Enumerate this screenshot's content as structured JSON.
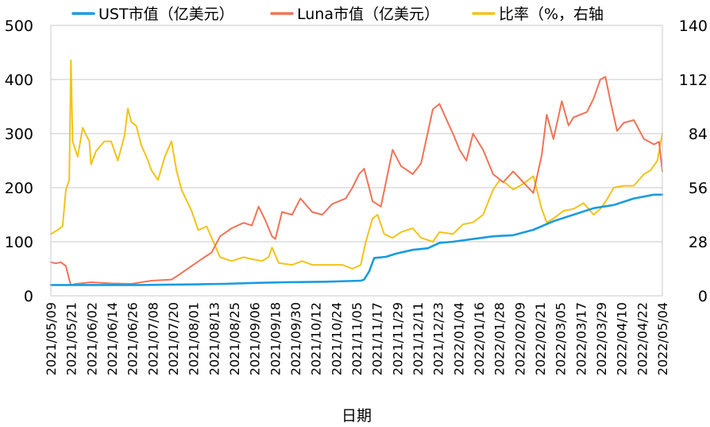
{
  "chart_data": {
    "type": "line",
    "xlabel": "日期",
    "legend_position": "top",
    "grid": true,
    "y_left": {
      "range": [
        0,
        500
      ],
      "ticks": [
        0,
        100,
        200,
        300,
        400,
        500
      ]
    },
    "y_right": {
      "range": [
        0,
        140
      ],
      "ticks": [
        0,
        28,
        56,
        84,
        112,
        140
      ]
    },
    "x_range": [
      "2021-05-09",
      "2022-05-09"
    ],
    "x_ticks": [
      "2021/05/09",
      "2021/05/21",
      "2021/06/02",
      "2021/06/14",
      "2021/06/26",
      "2021/07/08",
      "2021/07/20",
      "2021/08/01",
      "2021/08/13",
      "2021/08/25",
      "2021/09/06",
      "2021/09/18",
      "2021/09/30",
      "2021/10/12",
      "2021/10/24",
      "2021/11/05",
      "2021/11/17",
      "2021/11/29",
      "2021/12/11",
      "2021/12/23",
      "2022/01/04",
      "2022/01/16",
      "2022/01/28",
      "2022/02/09",
      "2022/02/21",
      "2022/03/05",
      "2022/03/17",
      "2022/03/29",
      "2022/04/10",
      "2022/04/22",
      "2022/05/04"
    ],
    "series": [
      {
        "name": "UST市值（亿美元）",
        "color": "#1a9be0",
        "axis": "left",
        "points": [
          [
            "2021-05-09",
            20
          ],
          [
            "2021-06-02",
            20
          ],
          [
            "2021-07-01",
            20
          ],
          [
            "2021-08-01",
            21
          ],
          [
            "2021-08-20",
            22
          ],
          [
            "2021-09-10",
            24
          ],
          [
            "2021-09-25",
            25
          ],
          [
            "2021-10-20",
            26
          ],
          [
            "2021-11-10",
            28
          ],
          [
            "2021-11-12",
            30
          ],
          [
            "2021-11-15",
            45
          ],
          [
            "2021-11-18",
            70
          ],
          [
            "2021-11-25",
            72
          ],
          [
            "2021-12-01",
            78
          ],
          [
            "2021-12-11",
            85
          ],
          [
            "2021-12-20",
            88
          ],
          [
            "2021-12-27",
            98
          ],
          [
            "2022-01-04",
            100
          ],
          [
            "2022-01-16",
            105
          ],
          [
            "2022-01-28",
            110
          ],
          [
            "2022-02-09",
            112
          ],
          [
            "2022-02-21",
            122
          ],
          [
            "2022-03-05",
            138
          ],
          [
            "2022-03-17",
            150
          ],
          [
            "2022-03-29",
            162
          ],
          [
            "2022-04-10",
            168
          ],
          [
            "2022-04-22",
            180
          ],
          [
            "2022-05-04",
            187
          ],
          [
            "2022-05-09",
            187
          ]
        ]
      },
      {
        "name": "Luna市值（亿美元）",
        "color": "#f07357",
        "axis": "left",
        "points": [
          [
            "2021-05-09",
            62
          ],
          [
            "2021-05-12",
            60
          ],
          [
            "2021-05-15",
            62
          ],
          [
            "2021-05-18",
            55
          ],
          [
            "2021-05-20",
            30
          ],
          [
            "2021-05-21",
            20
          ],
          [
            "2021-05-24",
            22
          ],
          [
            "2021-06-02",
            25
          ],
          [
            "2021-06-14",
            23
          ],
          [
            "2021-06-26",
            22
          ],
          [
            "2021-07-08",
            28
          ],
          [
            "2021-07-20",
            30
          ],
          [
            "2021-07-25",
            40
          ],
          [
            "2021-08-01",
            55
          ],
          [
            "2021-08-08",
            70
          ],
          [
            "2021-08-13",
            80
          ],
          [
            "2021-08-18",
            110
          ],
          [
            "2021-08-25",
            125
          ],
          [
            "2021-09-01",
            135
          ],
          [
            "2021-09-06",
            130
          ],
          [
            "2021-09-10",
            165
          ],
          [
            "2021-09-14",
            140
          ],
          [
            "2021-09-18",
            110
          ],
          [
            "2021-09-20",
            105
          ],
          [
            "2021-09-24",
            155
          ],
          [
            "2021-09-30",
            150
          ],
          [
            "2021-10-05",
            180
          ],
          [
            "2021-10-12",
            155
          ],
          [
            "2021-10-18",
            150
          ],
          [
            "2021-10-24",
            170
          ],
          [
            "2021-11-01",
            180
          ],
          [
            "2021-11-05",
            200
          ],
          [
            "2021-11-09",
            225
          ],
          [
            "2021-11-12",
            235
          ],
          [
            "2021-11-15",
            200
          ],
          [
            "2021-11-17",
            175
          ],
          [
            "2021-11-22",
            165
          ],
          [
            "2021-11-29",
            270
          ],
          [
            "2021-12-04",
            240
          ],
          [
            "2021-12-11",
            225
          ],
          [
            "2021-12-16",
            245
          ],
          [
            "2021-12-23",
            345
          ],
          [
            "2021-12-27",
            355
          ],
          [
            "2022-01-01",
            320
          ],
          [
            "2022-01-04",
            300
          ],
          [
            "2022-01-08",
            270
          ],
          [
            "2022-01-12",
            250
          ],
          [
            "2022-01-16",
            300
          ],
          [
            "2022-01-22",
            270
          ],
          [
            "2022-01-28",
            225
          ],
          [
            "2022-02-03",
            210
          ],
          [
            "2022-02-09",
            230
          ],
          [
            "2022-02-15",
            210
          ],
          [
            "2022-02-21",
            190
          ],
          [
            "2022-02-26",
            260
          ],
          [
            "2022-03-01",
            335
          ],
          [
            "2022-03-05",
            290
          ],
          [
            "2022-03-10",
            360
          ],
          [
            "2022-03-14",
            315
          ],
          [
            "2022-03-17",
            330
          ],
          [
            "2022-03-25",
            340
          ],
          [
            "2022-03-29",
            365
          ],
          [
            "2022-04-02",
            400
          ],
          [
            "2022-04-05",
            405
          ],
          [
            "2022-04-08",
            360
          ],
          [
            "2022-04-12",
            305
          ],
          [
            "2022-04-16",
            320
          ],
          [
            "2022-04-22",
            325
          ],
          [
            "2022-04-28",
            290
          ],
          [
            "2022-05-04",
            280
          ],
          [
            "2022-05-07",
            285
          ],
          [
            "2022-05-09",
            230
          ]
        ]
      },
      {
        "name": "比率（%，右轴",
        "color": "#f2c318",
        "axis": "right",
        "points": [
          [
            "2021-05-09",
            32
          ],
          [
            "2021-05-13",
            34
          ],
          [
            "2021-05-16",
            36
          ],
          [
            "2021-05-18",
            55
          ],
          [
            "2021-05-20",
            60
          ],
          [
            "2021-05-21",
            122
          ],
          [
            "2021-05-22",
            80
          ],
          [
            "2021-05-25",
            72
          ],
          [
            "2021-05-28",
            87
          ],
          [
            "2021-06-01",
            80
          ],
          [
            "2021-06-02",
            68
          ],
          [
            "2021-06-05",
            75
          ],
          [
            "2021-06-10",
            80
          ],
          [
            "2021-06-14",
            80
          ],
          [
            "2021-06-18",
            70
          ],
          [
            "2021-06-22",
            83
          ],
          [
            "2021-06-24",
            97
          ],
          [
            "2021-06-26",
            90
          ],
          [
            "2021-06-29",
            88
          ],
          [
            "2021-07-02",
            78
          ],
          [
            "2021-07-06",
            70
          ],
          [
            "2021-07-08",
            65
          ],
          [
            "2021-07-12",
            60
          ],
          [
            "2021-07-16",
            72
          ],
          [
            "2021-07-20",
            80
          ],
          [
            "2021-07-23",
            65
          ],
          [
            "2021-07-26",
            55
          ],
          [
            "2021-08-01",
            44
          ],
          [
            "2021-08-05",
            34
          ],
          [
            "2021-08-10",
            36
          ],
          [
            "2021-08-13",
            30
          ],
          [
            "2021-08-18",
            20
          ],
          [
            "2021-08-25",
            18
          ],
          [
            "2021-09-01",
            20
          ],
          [
            "2021-09-06",
            19
          ],
          [
            "2021-09-12",
            18
          ],
          [
            "2021-09-16",
            20
          ],
          [
            "2021-09-18",
            25
          ],
          [
            "2021-09-22",
            17
          ],
          [
            "2021-09-30",
            16
          ],
          [
            "2021-10-06",
            18
          ],
          [
            "2021-10-12",
            16
          ],
          [
            "2021-10-18",
            16
          ],
          [
            "2021-10-24",
            16
          ],
          [
            "2021-10-30",
            16
          ],
          [
            "2021-11-05",
            14
          ],
          [
            "2021-11-10",
            16
          ],
          [
            "2021-11-13",
            28
          ],
          [
            "2021-11-17",
            40
          ],
          [
            "2021-11-20",
            42
          ],
          [
            "2021-11-24",
            32
          ],
          [
            "2021-11-29",
            30
          ],
          [
            "2021-12-04",
            33
          ],
          [
            "2021-12-11",
            35
          ],
          [
            "2021-12-16",
            30
          ],
          [
            "2021-12-23",
            28
          ],
          [
            "2021-12-27",
            33
          ],
          [
            "2022-01-04",
            32
          ],
          [
            "2022-01-10",
            37
          ],
          [
            "2022-01-16",
            38
          ],
          [
            "2022-01-22",
            42
          ],
          [
            "2022-01-28",
            55
          ],
          [
            "2022-02-01",
            60
          ],
          [
            "2022-02-05",
            58
          ],
          [
            "2022-02-09",
            55
          ],
          [
            "2022-02-15",
            58
          ],
          [
            "2022-02-21",
            62
          ],
          [
            "2022-02-26",
            45
          ],
          [
            "2022-03-01",
            38
          ],
          [
            "2022-03-05",
            40
          ],
          [
            "2022-03-11",
            44
          ],
          [
            "2022-03-17",
            45
          ],
          [
            "2022-03-23",
            48
          ],
          [
            "2022-03-29",
            42
          ],
          [
            "2022-04-02",
            45
          ],
          [
            "2022-04-06",
            50
          ],
          [
            "2022-04-10",
            56
          ],
          [
            "2022-04-16",
            57
          ],
          [
            "2022-04-22",
            57
          ],
          [
            "2022-04-28",
            63
          ],
          [
            "2022-05-02",
            65
          ],
          [
            "2022-05-06",
            70
          ],
          [
            "2022-05-09",
            84
          ]
        ]
      }
    ]
  }
}
